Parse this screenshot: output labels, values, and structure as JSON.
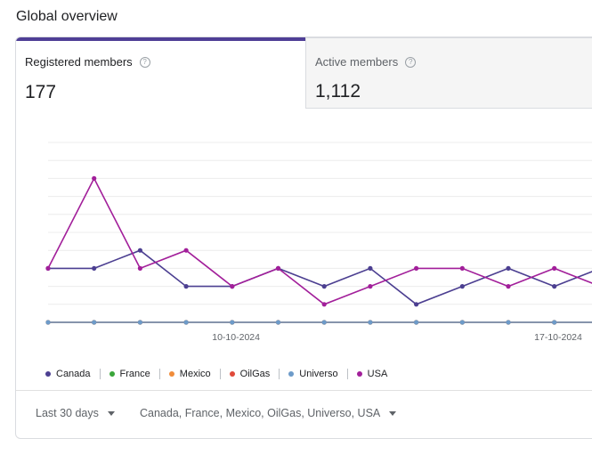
{
  "page": {
    "title": "Global overview"
  },
  "tabs": [
    {
      "label": "Registered members",
      "value": "177",
      "selected": true
    },
    {
      "label": "Active members",
      "value": "1,112",
      "selected": false
    }
  ],
  "chart_data": {
    "type": "line",
    "x_tick_labels": [
      "10-10-2024",
      "17-10-2024"
    ],
    "grid": true,
    "legend_position": "bottom-left",
    "series": [
      {
        "name": "Canada",
        "color": "#4c3f91",
        "values": [
          3,
          3,
          4,
          2,
          2,
          3,
          2,
          3,
          1,
          2,
          3,
          2,
          3
        ]
      },
      {
        "name": "France",
        "color": "#3aa63a",
        "values": [
          0,
          0,
          0,
          0,
          0,
          0,
          0,
          0,
          0,
          0,
          0,
          0,
          0
        ]
      },
      {
        "name": "Mexico",
        "color": "#f08c3a",
        "values": [
          0,
          0,
          0,
          0,
          0,
          0,
          0,
          0,
          0,
          0,
          0,
          0,
          0
        ]
      },
      {
        "name": "OilGas",
        "color": "#e04a3a",
        "values": [
          0,
          0,
          0,
          0,
          0,
          0,
          0,
          0,
          0,
          0,
          0,
          0,
          0
        ]
      },
      {
        "name": "Universo",
        "color": "#6d9bc9",
        "values": [
          0,
          0,
          0,
          0,
          0,
          0,
          0,
          0,
          0,
          0,
          0,
          0,
          0
        ]
      },
      {
        "name": "USA",
        "color": "#a21f9a",
        "values": [
          3,
          8,
          3,
          4,
          2,
          3,
          1,
          2,
          3,
          3,
          2,
          3,
          2
        ]
      }
    ]
  },
  "controls": {
    "range_label": "Last 30 days",
    "countries_label": "Canada, France, Mexico, OilGas, Universo, USA"
  }
}
